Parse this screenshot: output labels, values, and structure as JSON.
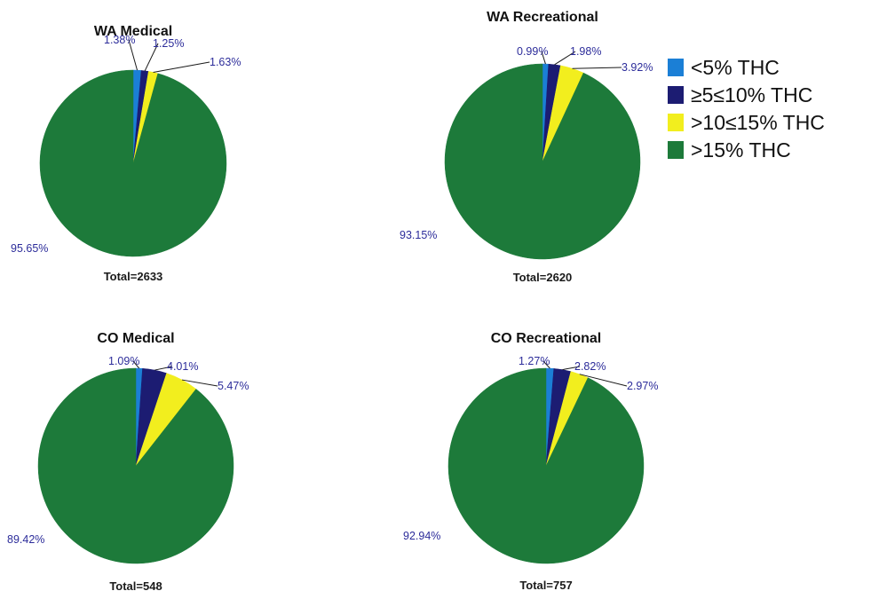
{
  "chart_data": [
    {
      "type": "pie",
      "title": "WA Medical",
      "total_label": "Total=2633",
      "categories": [
        "<5% THC",
        "≥5≤10% THC",
        ">10≤15% THC",
        ">15% THC"
      ],
      "values": [
        1.38,
        1.25,
        1.63,
        95.65
      ],
      "value_labels": [
        "1.38%",
        "1.25%",
        "1.63%",
        "95.65%"
      ]
    },
    {
      "type": "pie",
      "title": "WA Recreational",
      "total_label": "Total=2620",
      "categories": [
        "<5% THC",
        "≥5≤10% THC",
        ">10≤15% THC",
        ">15% THC"
      ],
      "values": [
        0.99,
        1.98,
        3.92,
        93.15
      ],
      "value_labels": [
        "0.99%",
        "1.98%",
        "3.92%",
        "93.15%"
      ]
    },
    {
      "type": "pie",
      "title": "CO Medical",
      "total_label": "Total=548",
      "categories": [
        "<5% THC",
        "≥5≤10% THC",
        ">10≤15% THC",
        ">15% THC"
      ],
      "values": [
        1.09,
        4.01,
        5.47,
        89.42
      ],
      "value_labels": [
        "1.09%",
        "4.01%",
        "5.47%",
        "89.42%"
      ]
    },
    {
      "type": "pie",
      "title": "CO Recreational",
      "total_label": "Total=757",
      "categories": [
        "<5% THC",
        "≥5≤10% THC",
        ">10≤15% THC",
        ">15% THC"
      ],
      "values": [
        1.27,
        2.82,
        2.97,
        92.94
      ],
      "value_labels": [
        "1.27%",
        "2.82%",
        "2.97%",
        "92.94%"
      ]
    }
  ],
  "legend": {
    "placement": "top-right",
    "items": [
      {
        "label": "<5% THC",
        "color": "#1b7fd6"
      },
      {
        "label": "≥5≤10% THC",
        "color": "#1c1c72"
      },
      {
        "label": ">10≤15% THC",
        "color": "#f2ee1e"
      },
      {
        "label": ">15% THC",
        "color": "#1d7a3a"
      }
    ]
  },
  "colors": [
    "#1b7fd6",
    "#1c1c72",
    "#f2ee1e",
    "#1d7a3a"
  ]
}
